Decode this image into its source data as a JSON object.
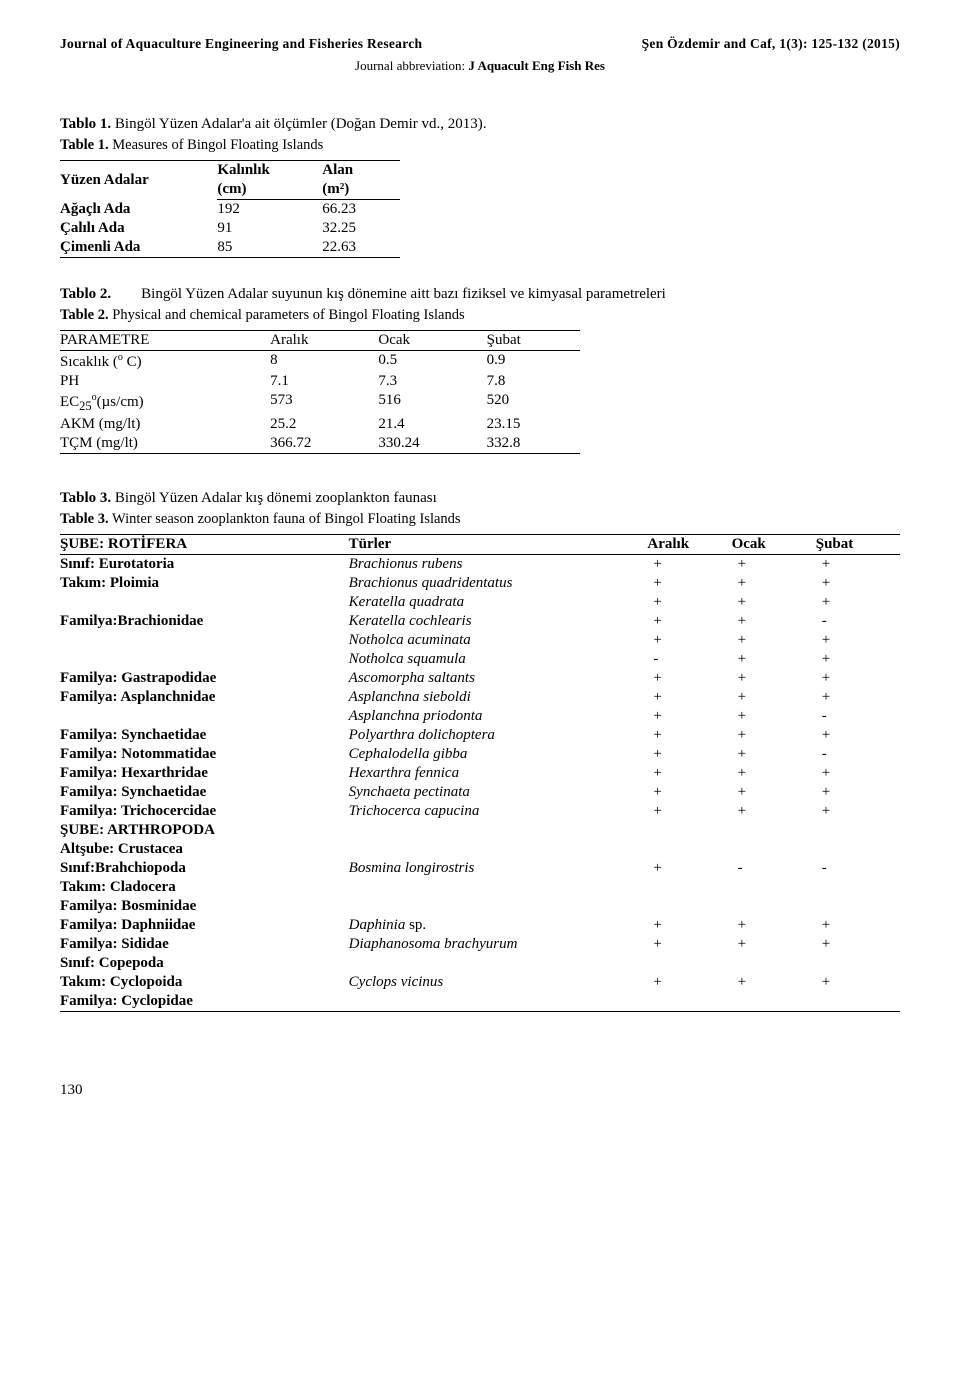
{
  "header": {
    "journal": "Journal of Aquaculture Engineering and Fisheries Research",
    "citation": "Şen Özdemir and Caf, 1(3): 125-132 (2015)",
    "abbrev_label": "Journal abbreviation: ",
    "abbrev": "J Aquacult Eng Fish Res"
  },
  "tablo1": {
    "label": "Tablo 1.",
    "title": " Bingöl Yüzen Adalar'a ait ölçümler (Doğan Demir vd., 2013).",
    "sub_label": "Table 1.",
    "sub_title": " Measures of Bingol Floating Islands",
    "col0": "Yüzen Adalar",
    "col1a": "Kalınlık",
    "col1b": "(cm)",
    "col2a": "Alan",
    "col2b": "(m²)",
    "rows": [
      {
        "name": "Ağaçlı Ada",
        "a": "192",
        "b": "66.23"
      },
      {
        "name": "Çalılı Ada",
        "a": "91",
        "b": "32.25"
      },
      {
        "name": "Çimenli Ada",
        "a": "85",
        "b": "22.63"
      }
    ]
  },
  "tablo2": {
    "label": "Tablo 2.",
    "title": "Bingöl Yüzen Adalar suyunun kış dönemine aitt bazı fiziksel ve kimyasal parametreleri",
    "sub_label": "Table 2.",
    "sub_title": " Physical and chemical parameters of Bingol Floating Islands",
    "h0": "PARAMETRE",
    "h1": "Aralık",
    "h2": "Ocak",
    "h3": "Şubat",
    "rows": [
      {
        "p": "Sıcaklık (",
        "psup": "o",
        "p2": " C)",
        "a": "8",
        "b": "0.5",
        "c": "0.9"
      },
      {
        "p": "PH",
        "psup": "",
        "p2": "",
        "a": "7.1",
        "b": "7.3",
        "c": "7.8"
      },
      {
        "p": "EC",
        "psub": "25",
        "psup": "o",
        "p2": "(µs/cm)",
        "a": "573",
        "b": "516",
        "c": "520"
      },
      {
        "p": "AKM (mg/lt)",
        "psup": "",
        "p2": "",
        "a": "25.2",
        "b": "21.4",
        "c": "23.15"
      },
      {
        "p": "TÇM  (mg/lt)",
        "psup": "",
        "p2": "",
        "a": "366.72",
        "b": "330.24",
        "c": "332.8"
      }
    ]
  },
  "tablo3": {
    "label": "Tablo 3.",
    "title": " Bingöl Yüzen Adalar kış dönemi zooplankton faunası",
    "sub_label": "Table 3.",
    "sub_title": " Winter season zooplankton fauna of Bingol Floating Islands",
    "h0": "ŞUBE: ROTİFERA",
    "h1": "Türler",
    "h2": "Aralık",
    "h3": "Ocak",
    "h4": "Şubat",
    "rows": [
      {
        "tax": "Sınıf: Eurotatoria",
        "bold": true,
        "sp": "Brachionus rubens",
        "a": "+",
        "b": "+",
        "c": "+"
      },
      {
        "tax": "Takım: Ploimia",
        "bold": true,
        "sp": "Brachionus quadridentatus",
        "a": "+",
        "b": "+",
        "c": "+"
      },
      {
        "tax": "",
        "bold": false,
        "sp": "Keratella quadrata",
        "a": "+",
        "b": "+",
        "c": "+"
      },
      {
        "tax": "Familya:Brachionidae",
        "bold": true,
        "mid": true,
        "sp": "Keratella cochlearis",
        "a": "+",
        "b": "+",
        "c": "-"
      },
      {
        "tax": "",
        "bold": false,
        "sp": "Notholca acuminata",
        "a": "+",
        "b": "+",
        "c": "+"
      },
      {
        "tax": "",
        "bold": false,
        "sp": "Notholca squamula",
        "a": "-",
        "b": "+",
        "c": "+"
      },
      {
        "tax": "Familya: Gastrapodidae",
        "bold": true,
        "sp": "Ascomorpha saltants",
        "a": "+",
        "b": "+",
        "c": "+"
      },
      {
        "tax": "Familya: Asplanchnidae",
        "bold": true,
        "sp": "Asplanchna sieboldi",
        "a": "+",
        "b": "+",
        "c": "+"
      },
      {
        "tax": "",
        "bold": false,
        "sp": "Asplanchna priodonta",
        "a": "+",
        "b": "+",
        "c": "-"
      },
      {
        "tax": "Familya: Synchaetidae",
        "bold": true,
        "sp": "Polyarthra dolichoptera",
        "a": "+",
        "b": "+",
        "c": "+"
      },
      {
        "tax": "Familya: Notommatidae",
        "bold": true,
        "sp": "Cephalodella gibba",
        "a": "+",
        "b": "+",
        "c": "-"
      },
      {
        "tax": "Familya: Hexarthridae",
        "bold": true,
        "sp": "Hexarthra fennica",
        "a": "+",
        "b": "+",
        "c": "+"
      },
      {
        "tax": "Familya: Synchaetidae",
        "bold": true,
        "sp": "Synchaeta pectinata",
        "a": "+",
        "b": "+",
        "c": "+"
      },
      {
        "tax": "Familya: Trichocercidae",
        "bold": true,
        "sp": "Trichocerca capucina",
        "a": "+",
        "b": "+",
        "c": "+"
      },
      {
        "tax": "ŞUBE: ARTHROPODA",
        "bold": true,
        "sp": "",
        "a": "",
        "b": "",
        "c": ""
      },
      {
        "tax": "Altşube: Crustacea",
        "bold": true,
        "sp": "",
        "a": "",
        "b": "",
        "c": ""
      },
      {
        "tax": "Sınıf:Brahchiopoda",
        "bold": true,
        "sp": "Bosmina longirostris",
        "a": "+",
        "b": "-",
        "c": "-"
      },
      {
        "tax": "Takım: Cladocera",
        "bold": true,
        "sp": "",
        "a": "",
        "b": "",
        "c": ""
      },
      {
        "tax": "Familya: Bosminidae",
        "bold": true,
        "sp": "",
        "a": "",
        "b": "",
        "c": ""
      },
      {
        "tax": "Familya: Daphniidae",
        "bold": true,
        "sp": "Daphinia",
        "sp_suffix": " sp.",
        "a": "+",
        "b": "+",
        "c": "+"
      },
      {
        "tax": "Familya: Sididae",
        "bold": true,
        "sp": "Diaphanosoma brachyurum",
        "a": "+",
        "b": "+",
        "c": "+"
      },
      {
        "tax": "Sınıf: Copepoda",
        "bold": true,
        "sp": "",
        "a": "",
        "b": "",
        "c": ""
      },
      {
        "tax": "Takım: Cyclopoida",
        "bold": true,
        "sp": "Cyclops vicinus",
        "a": "+",
        "b": "+",
        "c": "+"
      },
      {
        "tax": "Familya: Cyclopidae",
        "bold": true,
        "sp": "",
        "a": "",
        "b": "",
        "c": ""
      }
    ]
  },
  "page_number": "130"
}
